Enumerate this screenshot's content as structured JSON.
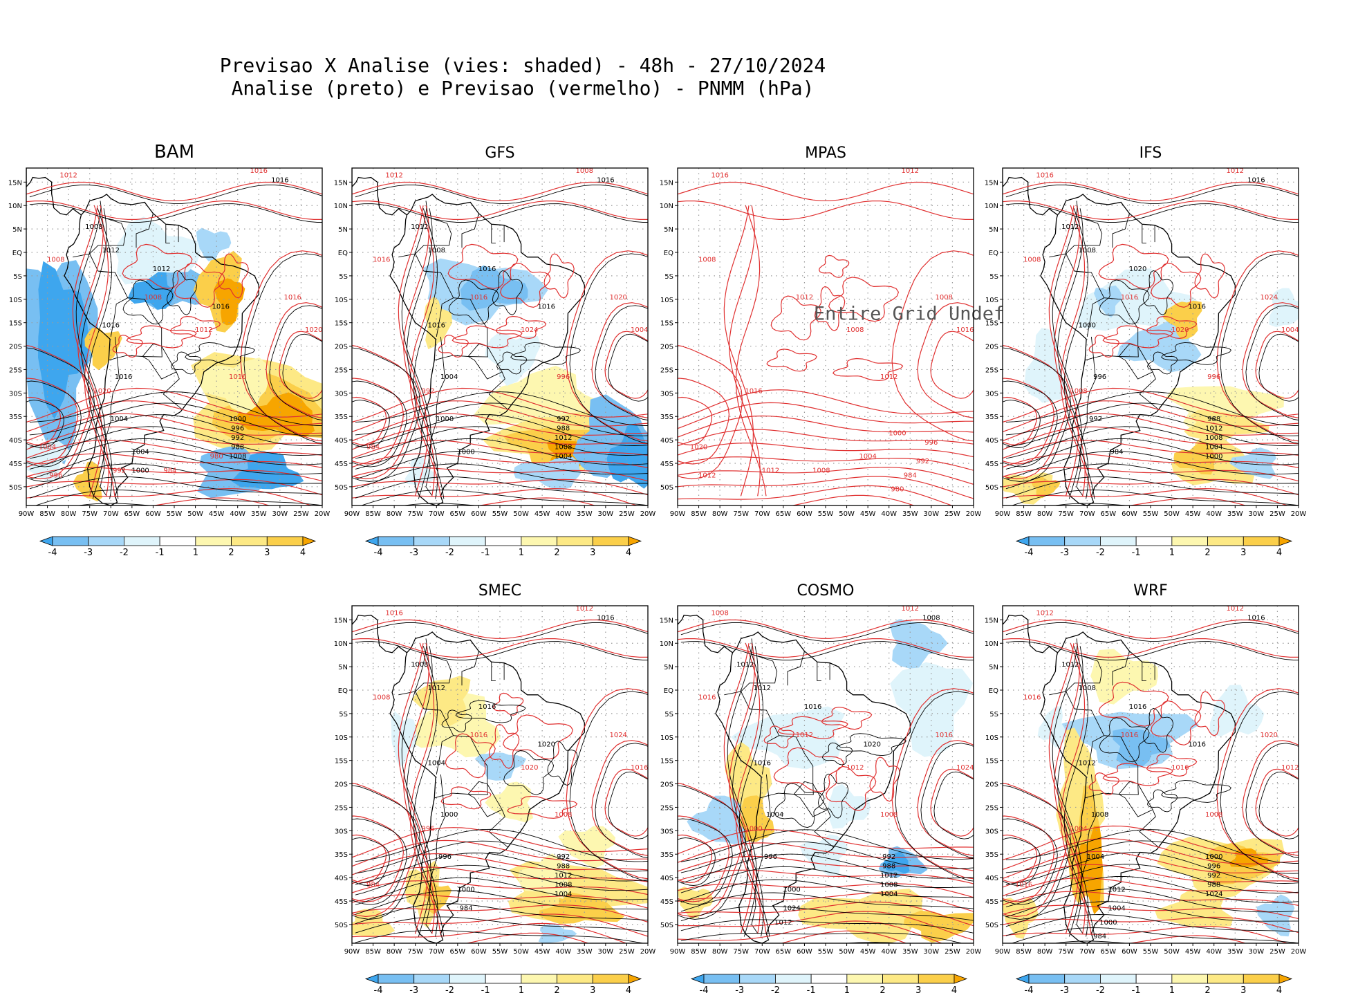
{
  "figure": {
    "title_line1": "Previsao X Analise (vies: shaded) - 48h - 27/10/2024",
    "title_line2": "Analise (preto) e Previsao (vermelho) - PNMM (hPa)"
  },
  "colors": {
    "analysis_contours": "#000000",
    "forecast_contours": "#e03030",
    "bias_neg4": "#3ea6ee",
    "bias_neg3": "#78bff2",
    "bias_neg2": "#a8d8f8",
    "bias_neg1": "#dff4fb",
    "bias_pos1": "#fdf7b0",
    "bias_pos2": "#fde985",
    "bias_pos3": "#fbcf4a",
    "bias_pos4": "#f7a500"
  },
  "axes": {
    "lon_ticks": [
      "90W",
      "85W",
      "80W",
      "75W",
      "70W",
      "65W",
      "60W",
      "55W",
      "50W",
      "45W",
      "40W",
      "35W",
      "30W",
      "25W",
      "20W"
    ],
    "lat_ticks": [
      "15N",
      "10N",
      "5N",
      "EQ",
      "5S",
      "10S",
      "15S",
      "20S",
      "25S",
      "30S",
      "35S",
      "40S",
      "45S",
      "50S"
    ]
  },
  "colorbar": {
    "labels": [
      "-4",
      "-3",
      "-2",
      "-1",
      "1",
      "2",
      "3",
      "4"
    ]
  },
  "panels": [
    {
      "id": "bam",
      "title": "BAM",
      "has_colorbar": true,
      "undefined_text": ""
    },
    {
      "id": "gfs",
      "title": "GFS",
      "has_colorbar": true,
      "undefined_text": ""
    },
    {
      "id": "mpas",
      "title": "MPAS",
      "has_colorbar": false,
      "undefined_text": "Entire Grid Undef"
    },
    {
      "id": "ifs",
      "title": "IFS",
      "has_colorbar": true,
      "undefined_text": ""
    },
    {
      "id": "smec",
      "title": "SMEC",
      "has_colorbar": true,
      "undefined_text": ""
    },
    {
      "id": "cosmo",
      "title": "COSMO",
      "has_colorbar": true,
      "undefined_text": ""
    },
    {
      "id": "wrf",
      "title": "WRF",
      "has_colorbar": true,
      "undefined_text": ""
    }
  ],
  "contour_labels": {
    "bam": {
      "forecast": [
        "1012",
        "1016",
        "1008",
        "1008",
        "1012",
        "1016",
        "1020",
        "1016",
        "1020",
        "1004",
        "996",
        "992",
        "984",
        "980"
      ],
      "analysis": [
        "1016",
        "1008",
        "1012",
        "1012",
        "1016",
        "1016",
        "1016",
        "1004",
        "1000",
        "996",
        "992",
        "988",
        "1008",
        "1004",
        "1000"
      ]
    },
    "gfs": {
      "forecast": [
        "1012",
        "1008",
        "1016",
        "1016",
        "1024",
        "1020",
        "1004",
        "996",
        "992",
        "984"
      ],
      "analysis": [
        "1016",
        "1012",
        "1008",
        "1016",
        "1016",
        "1016",
        "1004",
        "1000",
        "992",
        "988",
        "1012",
        "1008",
        "1004",
        "1000"
      ]
    },
    "mpas": {
      "forecast": [
        "1016",
        "1012",
        "1008",
        "1012",
        "1008",
        "1008",
        "1016",
        "1012",
        "1016",
        "1020",
        "1012",
        "1012",
        "1008",
        "1004",
        "1000",
        "996",
        "992",
        "984",
        "980"
      ],
      "analysis": []
    },
    "ifs": {
      "forecast": [
        "1016",
        "1012",
        "1008",
        "1016",
        "1020",
        "1024",
        "1004",
        "996",
        "1008"
      ],
      "analysis": [
        "1016",
        "1012",
        "1008",
        "1020",
        "1016",
        "1000",
        "996",
        "992",
        "988",
        "1012",
        "1008",
        "1004",
        "1000",
        "984"
      ]
    },
    "smec": {
      "forecast": [
        "1016",
        "1012",
        "1008",
        "1016",
        "1020",
        "1024",
        "1016",
        "1008",
        "996",
        "984"
      ],
      "analysis": [
        "1016",
        "1008",
        "1012",
        "1016",
        "1020",
        "1004",
        "1000",
        "996",
        "992",
        "988",
        "1012",
        "1008",
        "1004",
        "1000",
        "984"
      ]
    },
    "cosmo": {
      "forecast": [
        "1008",
        "1012",
        "1016",
        "1012",
        "1012",
        "1016",
        "1024",
        "1008",
        "1000"
      ],
      "analysis": [
        "1008",
        "1012",
        "1012",
        "1016",
        "1020",
        "1016",
        "1004",
        "996",
        "992",
        "988",
        "1012",
        "1008",
        "1004",
        "1000",
        "1024",
        "1012"
      ]
    },
    "wrf": {
      "forecast": [
        "1012",
        "1012",
        "1016",
        "1016",
        "1016",
        "1020",
        "1012",
        "1008",
        "1004",
        "1016"
      ],
      "analysis": [
        "1016",
        "1012",
        "1008",
        "1016",
        "1016",
        "1012",
        "1008",
        "1004",
        "1000",
        "996",
        "992",
        "988",
        "1024",
        "1012",
        "1004",
        "1000",
        "984"
      ]
    }
  }
}
